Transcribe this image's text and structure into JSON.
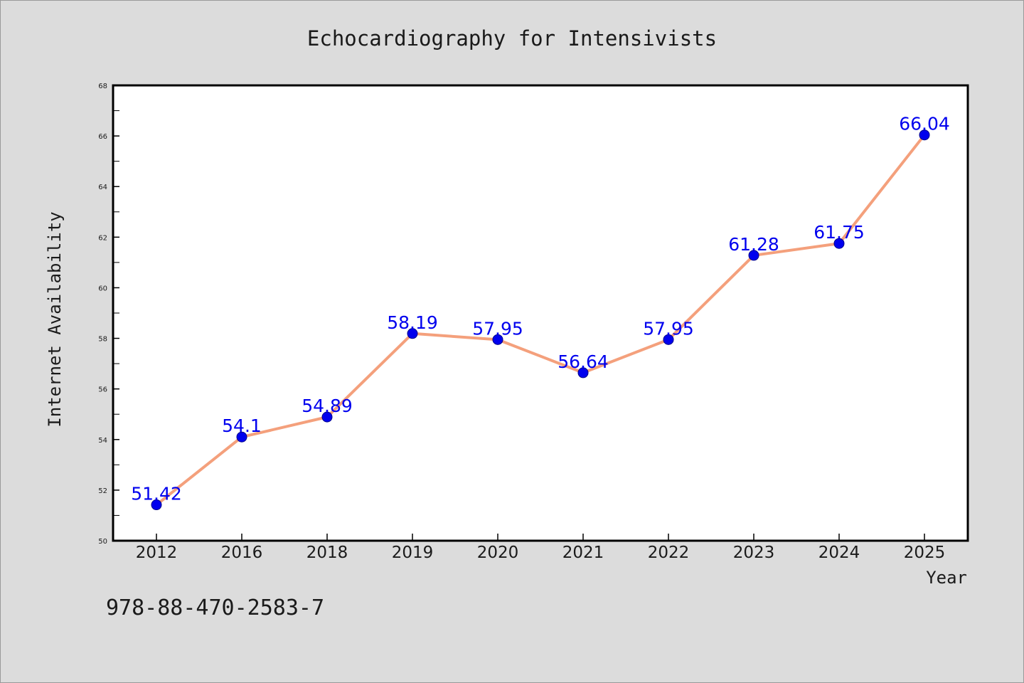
{
  "isbn": "978-88-470-2583-7",
  "colors": {
    "background": "#dcdcdc",
    "plot_background": "#ffffff",
    "line": "#f4a07c",
    "marker": "#0000ee",
    "label": "#0000ee"
  },
  "chart_data": {
    "type": "line",
    "title": "Echocardiography for Intensivists",
    "xlabel": "Year",
    "ylabel": "Internet Availability",
    "categories": [
      "2012",
      "2016",
      "2018",
      "2019",
      "2020",
      "2021",
      "2022",
      "2023",
      "2024",
      "2025"
    ],
    "series": [
      {
        "values": [
          51.42,
          54.1,
          54.89,
          58.19,
          57.95,
          56.64,
          57.95,
          61.28,
          61.75,
          66.04
        ],
        "labels": [
          "51.42",
          "54.1",
          "54.89",
          "58.19",
          "57.95",
          "56.64",
          "57.95",
          "61.28",
          "61.75",
          "66.04"
        ]
      }
    ],
    "ylim": [
      50,
      68
    ],
    "yticks": [
      "50",
      "52",
      "54",
      "56",
      "58",
      "60",
      "62",
      "64",
      "66",
      "68"
    ],
    "grid": false,
    "legend": "none"
  }
}
